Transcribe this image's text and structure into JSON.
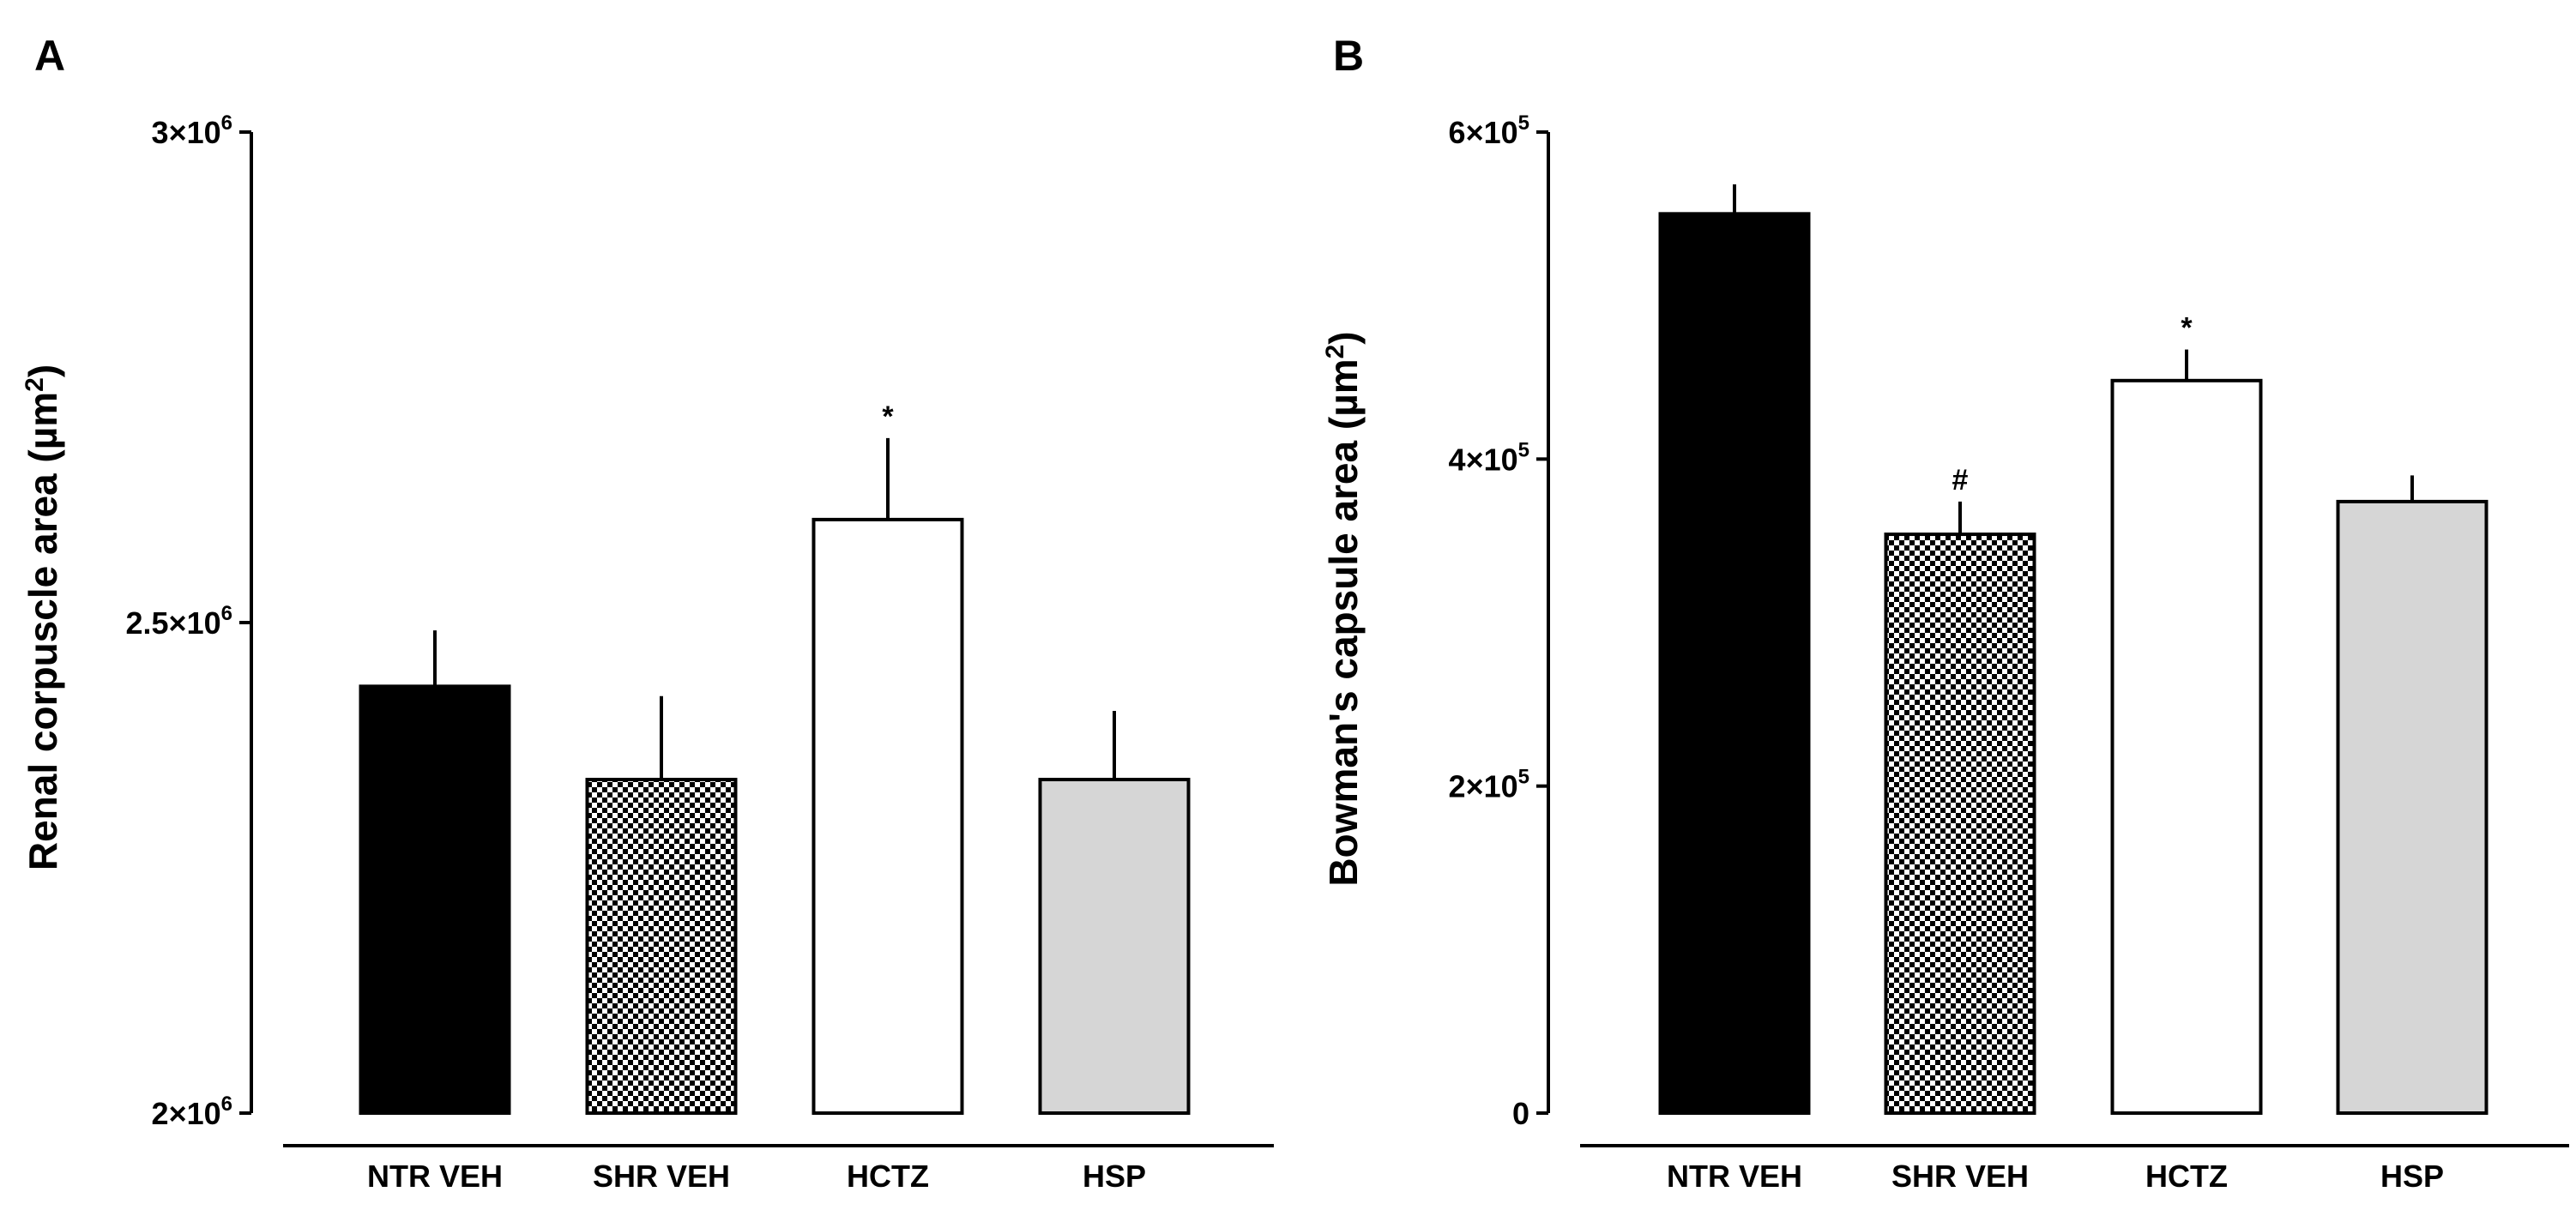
{
  "chart_data": [
    {
      "type": "bar",
      "panel": "A",
      "categories": [
        "NTR VEH",
        "SHR VEH",
        "HCTZ",
        "HSP"
      ],
      "values": [
        2435000,
        2340000,
        2605000,
        2340000
      ],
      "errors": [
        57000,
        85000,
        83000,
        70000
      ],
      "annotations": [
        "",
        "",
        "*",
        ""
      ],
      "fills": [
        "solid-black",
        "checker",
        "white",
        "light-gray"
      ],
      "ylabel": "Renal corpuscle area (µm",
      "ylabel_sup": "2",
      "ylabel_close": ")",
      "ylim": [
        2000000,
        3000000
      ],
      "yticks": [
        {
          "value": 2000000,
          "base": "2×10",
          "exp": "6"
        },
        {
          "value": 2500000,
          "base": "2.5×10",
          "exp": "6"
        },
        {
          "value": 3000000,
          "base": "3×10",
          "exp": "6"
        }
      ]
    },
    {
      "type": "bar",
      "panel": "B",
      "categories": [
        "NTR VEH",
        "SHR VEH",
        "HCTZ",
        "HSP"
      ],
      "values": [
        550000,
        354000,
        448000,
        374000
      ],
      "errors": [
        18000,
        20000,
        19000,
        16000
      ],
      "annotations": [
        "",
        "#",
        "*",
        ""
      ],
      "fills": [
        "solid-black",
        "checker",
        "white",
        "light-gray"
      ],
      "ylabel": "Bowman's capsule area (µm",
      "ylabel_sup": "2",
      "ylabel_close": ")",
      "ylim": [
        0,
        600000
      ],
      "yticks": [
        {
          "value": 0,
          "base": "0",
          "exp": ""
        },
        {
          "value": 200000,
          "base": "2×10",
          "exp": "5"
        },
        {
          "value": 400000,
          "base": "4×10",
          "exp": "5"
        },
        {
          "value": 600000,
          "base": "6×10",
          "exp": "5"
        }
      ]
    }
  ],
  "colors": {
    "solid-black": "#000000",
    "white": "#ffffff",
    "light-gray": "#d6d6d6",
    "axis": "#000000"
  }
}
